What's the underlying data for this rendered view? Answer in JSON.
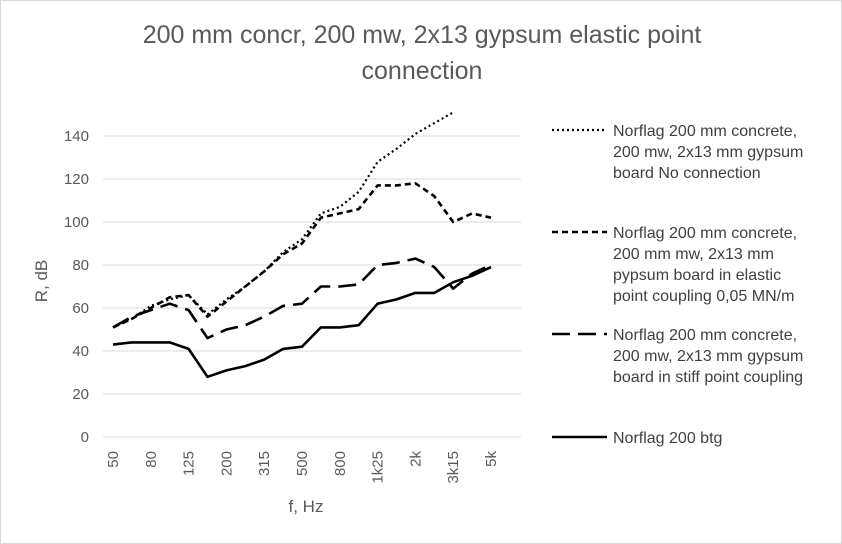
{
  "chart_data": {
    "type": "line",
    "title_line1": "200 mm concr, 200 mw, 2x13 gypsum elastic point",
    "title_line2": "connection",
    "xlabel": "f, Hz",
    "ylabel": "R, dB",
    "ylim": [
      0,
      150
    ],
    "yticks": [
      "0",
      "20",
      "40",
      "60",
      "80",
      "100",
      "120",
      "140"
    ],
    "x": [
      "50",
      "63",
      "80",
      "100",
      "125",
      "160",
      "200",
      "250",
      "315",
      "400",
      "500",
      "630",
      "800",
      "1k",
      "1k25",
      "1k6",
      "2k",
      "2k5",
      "3k15",
      "4k",
      "5k"
    ],
    "xtick_labels": [
      "50",
      "80",
      "125",
      "200",
      "315",
      "500",
      "800",
      "1k25",
      "2k",
      "3k15",
      "5k"
    ],
    "grid": "horizontal",
    "legend_position": "right",
    "series": [
      {
        "name_lines": [
          "Norflag 200 mm concrete,",
          "200 mw, 2x13 mm gypsum",
          "board No connection"
        ],
        "style": "dotted",
        "values": [
          51,
          55,
          61,
          64,
          66,
          57,
          64,
          70,
          77,
          86,
          92,
          104,
          107,
          114,
          128,
          134,
          141,
          146,
          151,
          null,
          null
        ]
      },
      {
        "name_lines": [
          "Norflag 200 mm concrete,",
          "200 mm mw, 2x13 mm",
          "pypsum board in elastic",
          "point coupling 0,05 MN/m"
        ],
        "style": "short-dash",
        "values": [
          51,
          55,
          60,
          65,
          66,
          56,
          63,
          70,
          77,
          85,
          90,
          102,
          104,
          106,
          117,
          117,
          118,
          112,
          100,
          104,
          102
        ]
      },
      {
        "name_lines": [
          "Norflag 200 mm concrete,",
          "200 mw, 2x13 mm gypsum",
          "board in stiff point coupling"
        ],
        "style": "long-dash",
        "values": [
          51,
          56,
          59,
          62,
          59,
          46,
          50,
          52,
          56,
          61,
          62,
          70,
          70,
          71,
          80,
          81,
          83,
          79,
          69,
          76,
          80
        ]
      },
      {
        "name_lines": [
          "Norflag 200 btg"
        ],
        "style": "solid",
        "values": [
          43,
          44,
          44,
          44,
          41,
          28,
          31,
          33,
          36,
          41,
          42,
          51,
          51,
          52,
          62,
          64,
          67,
          67,
          72,
          75,
          79
        ]
      }
    ]
  }
}
